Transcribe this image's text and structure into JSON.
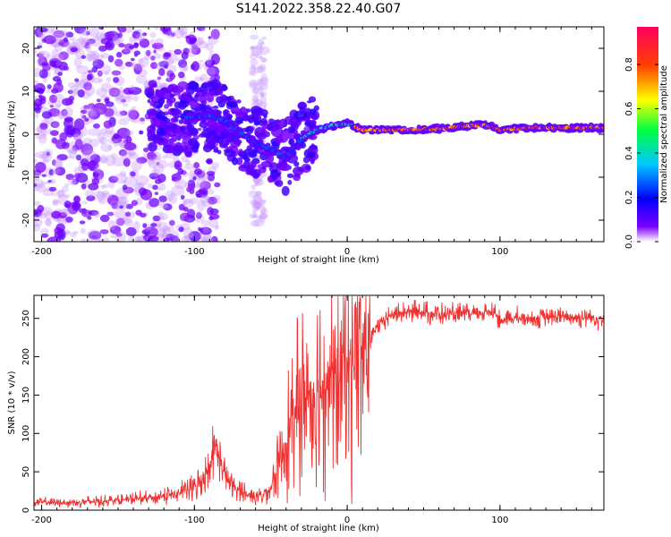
{
  "title": "S141.2022.358.22.40.G07",
  "chart_data": [
    {
      "type": "heatmap",
      "xlabel": "Height of straight line (km)",
      "ylabel": "Frequency (Hz)",
      "xlim": [
        -205,
        168
      ],
      "ylim": [
        -25,
        25
      ],
      "xticks": [
        -200,
        -100,
        0,
        100
      ],
      "yticks": [
        -20,
        -10,
        0,
        10,
        20
      ],
      "colorbar": {
        "label": "Normalized spectral amplitude",
        "range": [
          0,
          0.97
        ],
        "ticks": [
          0.0,
          0.2,
          0.4,
          0.6,
          0.8
        ],
        "colormap": [
          "#ffffff",
          "#7b00ff",
          "#0000ff",
          "#00c8ff",
          "#00ff40",
          "#ffff00",
          "#ff4000",
          "#ff0060"
        ]
      },
      "ridge": [
        {
          "x": -100,
          "y": 4.0
        },
        {
          "x": -90,
          "y": 4.5
        },
        {
          "x": -80,
          "y": 3.0
        },
        {
          "x": -70,
          "y": 0.5
        },
        {
          "x": -60,
          "y": -2.0
        },
        {
          "x": -50,
          "y": -3.5
        },
        {
          "x": -40,
          "y": -5.5
        },
        {
          "x": -30,
          "y": -1.0
        },
        {
          "x": -20,
          "y": 1.0
        },
        {
          "x": -10,
          "y": 2.0
        },
        {
          "x": 0,
          "y": 2.5
        },
        {
          "x": 10,
          "y": 1.0
        },
        {
          "x": 40,
          "y": 1.0
        },
        {
          "x": 60,
          "y": 1.2
        },
        {
          "x": 80,
          "y": 2.0
        },
        {
          "x": 90,
          "y": 2.2
        },
        {
          "x": 100,
          "y": 1.0
        },
        {
          "x": 120,
          "y": 1.5
        },
        {
          "x": 168,
          "y": 1.5
        }
      ]
    },
    {
      "type": "line",
      "xlabel": "Height of straight line (km)",
      "ylabel": "SNR (10 * v/v)",
      "xlim": [
        -205,
        168
      ],
      "ylim": [
        0,
        280
      ],
      "xticks": [
        -200,
        -100,
        0,
        100
      ],
      "yticks": [
        0,
        50,
        100,
        150,
        200,
        250
      ],
      "color": "#f03030",
      "series": [
        {
          "x": [
            -205,
            -180,
            -160,
            -140,
            -120,
            -110,
            -100,
            -95,
            -90,
            -87,
            -84,
            -80,
            -75,
            -70,
            -65,
            -60,
            -55,
            -50,
            -45,
            -40,
            -35,
            -30,
            -25,
            -20,
            -15,
            -10,
            -5,
            0,
            5,
            10,
            15,
            20,
            25,
            30,
            40,
            50,
            60,
            70,
            80,
            90,
            95,
            100,
            110,
            120,
            140,
            168
          ],
          "y": [
            10,
            10,
            12,
            14,
            18,
            22,
            30,
            40,
            60,
            85,
            70,
            45,
            30,
            25,
            20,
            18,
            20,
            30,
            60,
            90,
            120,
            140,
            150,
            160,
            170,
            175,
            180,
            185,
            195,
            205,
            220,
            240,
            250,
            255,
            258,
            258,
            255,
            255,
            255,
            258,
            260,
            248,
            250,
            250,
            252,
            250
          ]
        }
      ]
    }
  ]
}
